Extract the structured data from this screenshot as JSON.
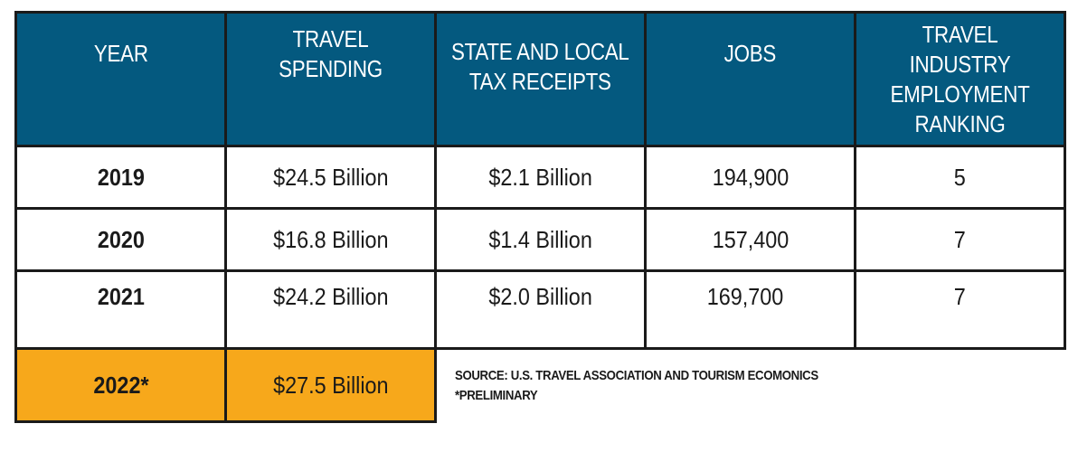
{
  "table": {
    "headers": [
      "YEAR",
      "TRAVEL SPENDING",
      "STATE AND LOCAL TAX RECEIPTS",
      "JOBS",
      "TRAVEL INDUSTRY EMPLOYMENT RANKING"
    ],
    "header_lines": {
      "year": "YEAR",
      "spending": "TRAVEL SPENDING",
      "tax_line1": "STATE AND LOCAL",
      "tax_line2": "TAX RECEIPTS",
      "jobs": "JOBS",
      "rank_line1": "TRAVEL INDUSTRY",
      "rank_line2": "EMPLOYMENT",
      "rank_line3": "RANKING"
    },
    "rows": [
      {
        "year": "2019",
        "spending": "$24.5 Billion",
        "tax": "$2.1 Billion",
        "jobs": "194,900",
        "rank": "5"
      },
      {
        "year": "2020",
        "spending": "$16.8 Billion",
        "tax": "$1.4 Billion",
        "jobs": "157,400",
        "rank": "7"
      },
      {
        "year": "2021",
        "spending": "$24.2 Billion",
        "tax": "$2.0 Billion",
        "jobs": "169,700",
        "rank": "7"
      },
      {
        "year": "2022*",
        "spending": "$27.5 Billion"
      }
    ]
  },
  "notes": {
    "source": "SOURCE: U.S. TRAVEL ASSOCIATION AND TOURISM ECOMONICS",
    "preliminary": "*PRELIMINARY"
  },
  "colors": {
    "header_bg": "#04597f",
    "header_text": "#ffffff",
    "highlight_bg": "#f7a81b",
    "border": "#1a1a1a"
  }
}
